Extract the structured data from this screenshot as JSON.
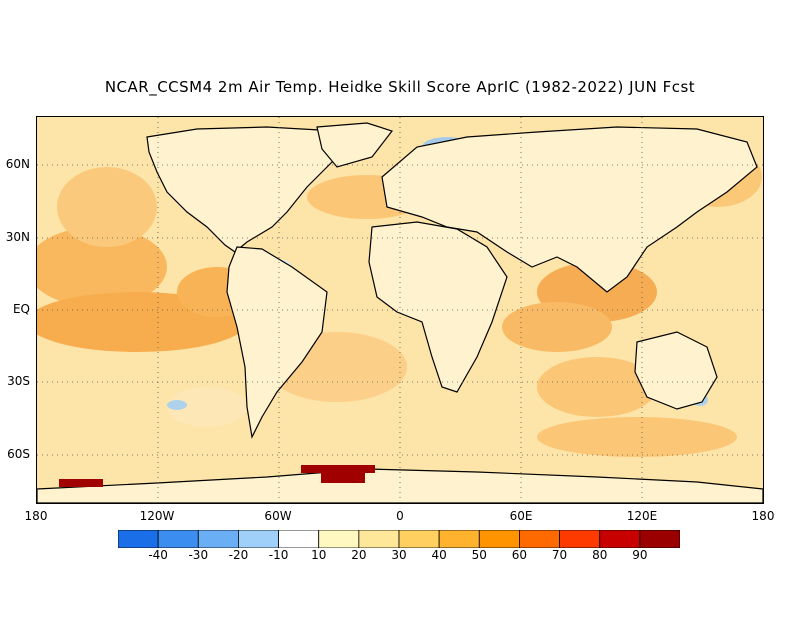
{
  "title": "NCAR_CCSM4 2m Air Temp. Heidke Skill Score AprIC (1982-2022) JUN Fcst",
  "lat_labels": [
    "60N",
    "30N",
    "EQ",
    "30S",
    "60S"
  ],
  "lon_labels": [
    "180",
    "120W",
    "60W",
    "0",
    "60E",
    "120E",
    "180"
  ],
  "colorbar": {
    "labels": [
      "-40",
      "-30",
      "-20",
      "-10",
      "10",
      "20",
      "30",
      "40",
      "50",
      "60",
      "70",
      "80",
      "90"
    ],
    "colors": [
      "#1a6ee8",
      "#3b8ef0",
      "#6aaef5",
      "#9fd0fa",
      "#ffffff",
      "#fff8c0",
      "#ffe799",
      "#ffd060",
      "#ffb22e",
      "#ff9400",
      "#ff6a00",
      "#ff3a00",
      "#c80000",
      "#9a0000"
    ]
  },
  "colors": {
    "land_base": "#fff6d8",
    "ocean_base": "#fde2a2",
    "warm": "#fbc26a",
    "hot": "#f5a03a",
    "cool": "#c7e4f7",
    "dark_red": "#a00000"
  }
}
